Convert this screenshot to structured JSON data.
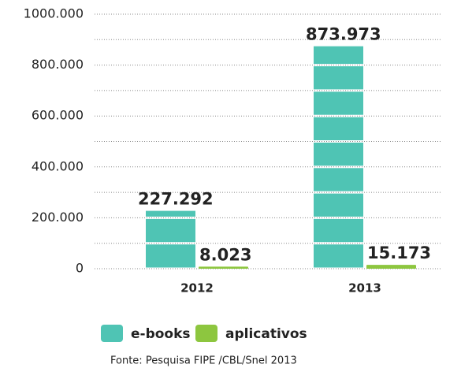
{
  "chart_data": {
    "type": "bar",
    "categories": [
      "2012",
      "2013"
    ],
    "series": [
      {
        "name": "e-books",
        "color": "#4fc4b4",
        "values": [
          227292,
          873973
        ],
        "value_labels": [
          "227.292",
          "873.973"
        ]
      },
      {
        "name": "aplicativos",
        "color": "#8dc63f",
        "values": [
          8023,
          15173
        ],
        "value_labels": [
          "8.023",
          "15.173"
        ]
      }
    ],
    "ylim": [
      0,
      1000000
    ],
    "yticks": [
      0,
      {
        "value": 200000,
        "label": "200.000"
      },
      {
        "value": 400000,
        "label": "400.000"
      },
      {
        "value": 600000,
        "label": "600.000"
      },
      {
        "value": 800000,
        "label": "800.000"
      },
      {
        "value": 1000000,
        "label": "1000.000"
      }
    ],
    "yminor": [
      100000,
      300000,
      500000,
      700000,
      900000
    ],
    "grid": true,
    "source": "Fonte: Pesquisa FIPE /CBL/Snel 2013"
  }
}
